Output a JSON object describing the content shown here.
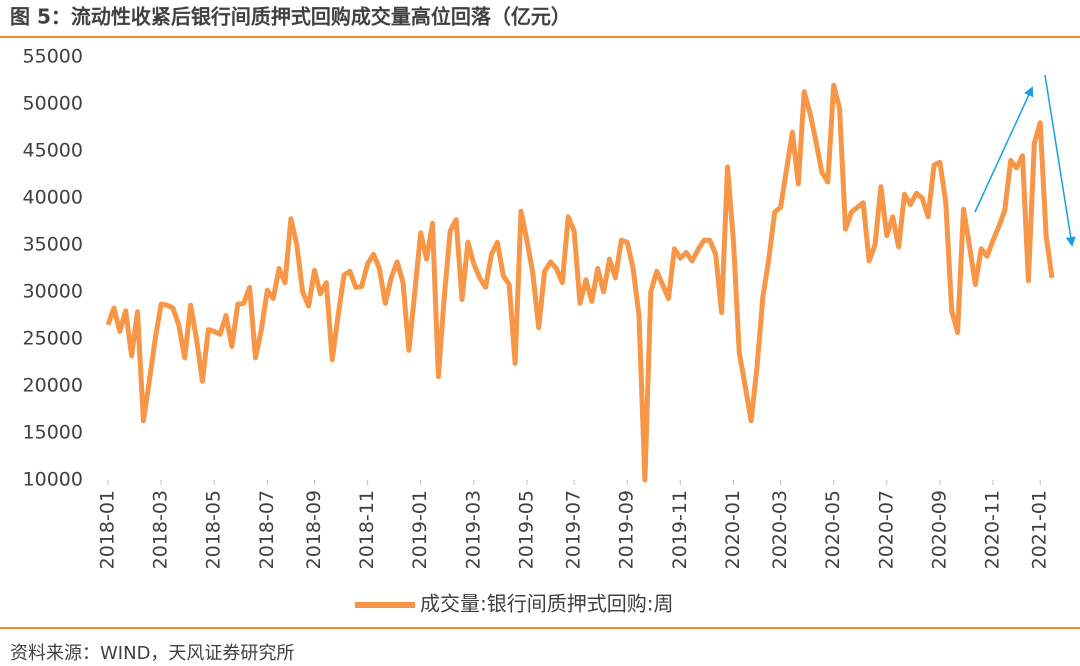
{
  "chart_data": {
    "type": "line",
    "title": "图 5：流动性收紧后银行间质押式回购成交量高位回落（亿元）",
    "source": "资料来源：WIND，天风证券研究所",
    "categories": [
      "2018-01",
      null,
      null,
      null,
      null,
      null,
      null,
      null,
      null,
      "2018-03",
      null,
      null,
      null,
      null,
      null,
      null,
      null,
      null,
      "2018-05",
      null,
      null,
      null,
      null,
      null,
      null,
      null,
      null,
      "2018-07",
      null,
      null,
      null,
      null,
      null,
      null,
      null,
      "2018-09",
      null,
      null,
      null,
      null,
      null,
      null,
      null,
      null,
      "2018-11",
      null,
      null,
      null,
      null,
      null,
      null,
      null,
      null,
      "2019-01",
      null,
      null,
      null,
      null,
      null,
      null,
      null,
      null,
      "2019-03",
      null,
      null,
      null,
      null,
      null,
      null,
      null,
      null,
      "2019-05",
      null,
      null,
      null,
      null,
      null,
      null,
      null,
      "2019-07",
      null,
      null,
      null,
      null,
      null,
      null,
      null,
      null,
      "2019-09",
      null,
      null,
      null,
      null,
      null,
      null,
      null,
      null,
      "2019-11",
      null,
      null,
      null,
      null,
      null,
      null,
      null,
      null,
      "2020-01",
      null,
      null,
      null,
      null,
      null,
      null,
      null,
      "2020-03",
      null,
      null,
      null,
      null,
      null,
      null,
      null,
      null,
      "2020-05",
      null,
      null,
      null,
      null,
      null,
      null,
      null,
      null,
      "2020-07",
      null,
      null,
      null,
      null,
      null,
      null,
      null,
      null,
      "2020-09",
      null,
      null,
      null,
      null,
      null,
      null,
      null,
      null,
      "2020-11",
      null,
      null,
      null,
      null,
      null,
      null,
      null,
      "2021-01",
      null,
      null
    ],
    "series": [
      {
        "name": "成交量:银行间质押式回购:周",
        "color": "#f79646",
        "values": [
          26500,
          28300,
          25800,
          28000,
          23200,
          27900,
          16300,
          20500,
          25000,
          28700,
          28600,
          28300,
          26500,
          23000,
          28600,
          25000,
          20500,
          26000,
          25800,
          25500,
          27500,
          24200,
          28700,
          28800,
          30500,
          23000,
          26000,
          30200,
          29300,
          32500,
          31000,
          37800,
          35000,
          30000,
          28500,
          32300,
          29800,
          31000,
          22800,
          27500,
          31800,
          32200,
          30500,
          30600,
          33000,
          34000,
          32500,
          28800,
          31500,
          33200,
          31000,
          23800,
          30000,
          36300,
          33500,
          37300,
          21000,
          29500,
          36500,
          37700,
          29200,
          35300,
          33000,
          31500,
          30500,
          34000,
          35300,
          31700,
          30800,
          22400,
          38600,
          35500,
          32000,
          26200,
          32200,
          33200,
          32500,
          31000,
          38000,
          36500,
          28800,
          31300,
          29000,
          32500,
          30000,
          33500,
          31500,
          35500,
          35300,
          32500,
          27500,
          10000,
          30000,
          32200,
          30800,
          29300,
          34600,
          33600,
          34200,
          33300,
          34500,
          35500,
          35500,
          34000,
          27800,
          43300,
          35500,
          23500,
          20000,
          16300,
          22000,
          29500,
          33500,
          38500,
          39000,
          43000,
          47000,
          41500,
          51300,
          49000,
          46000,
          42700,
          41700,
          52000,
          49500,
          36700,
          38500,
          39000,
          39500,
          33300,
          35000,
          41200,
          36000,
          38000,
          34800,
          40400,
          39300,
          40500,
          40000,
          38000,
          43500,
          43800,
          39500,
          28000,
          25700,
          38800,
          35000,
          30800,
          34600,
          33800,
          35500,
          37000,
          38700,
          44000,
          43200,
          44500,
          31200,
          45800,
          48000,
          36000,
          31500
        ]
      }
    ],
    "ylim": [
      10000,
      55000
    ],
    "yticks": [
      10000,
      15000,
      20000,
      25000,
      30000,
      35000,
      40000,
      45000,
      50000,
      55000
    ]
  }
}
